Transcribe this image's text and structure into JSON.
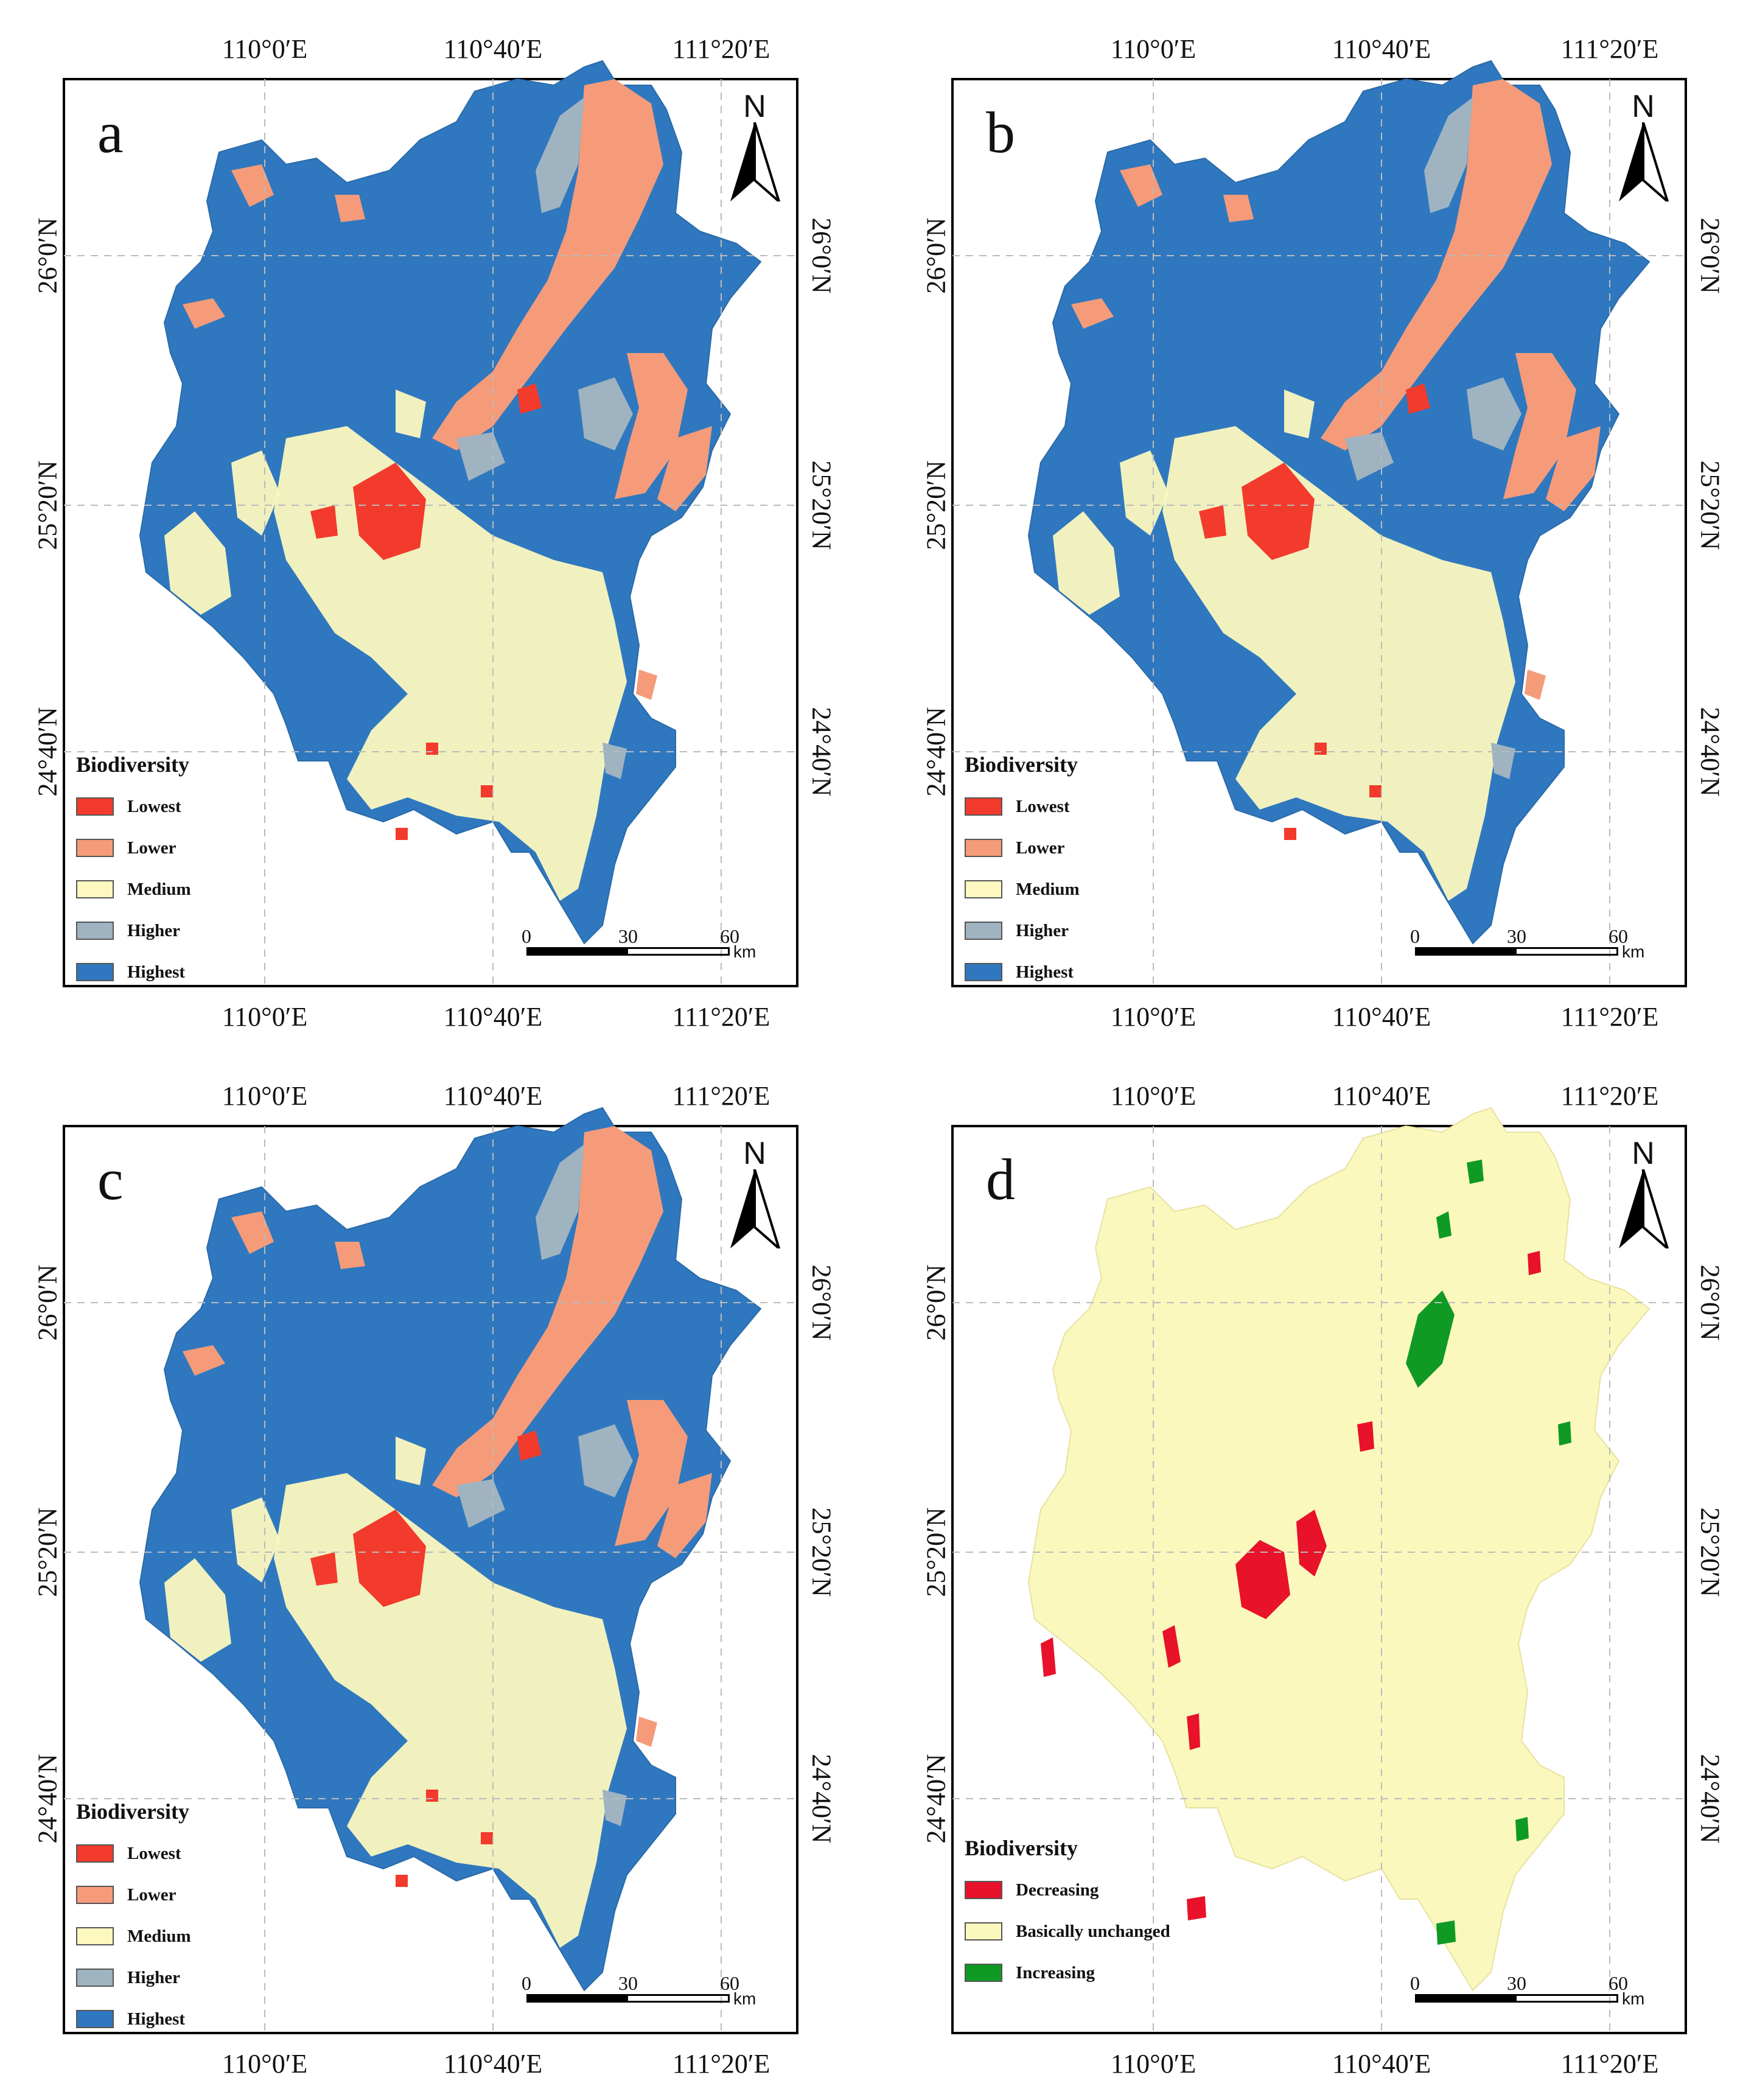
{
  "panels": [
    {
      "id": "a",
      "letter": "a",
      "legend_title": "Biodiversity",
      "legend": [
        {
          "label": "Lowest",
          "color": "#f23b2c"
        },
        {
          "label": "Lower",
          "color": "#f59b7a"
        },
        {
          "label": "Medium",
          "color": "#fcf8bf"
        },
        {
          "label": "Higher",
          "color": "#9fb3c1"
        },
        {
          "label": "Highest",
          "color": "#2f78bf"
        }
      ]
    },
    {
      "id": "b",
      "letter": "b",
      "legend_title": "Biodiversity",
      "legend": [
        {
          "label": "Lowest",
          "color": "#f23b2c"
        },
        {
          "label": "Lower",
          "color": "#f59b7a"
        },
        {
          "label": "Medium",
          "color": "#fcf8bf"
        },
        {
          "label": "Higher",
          "color": "#9fb3c1"
        },
        {
          "label": "Highest",
          "color": "#2f78bf"
        }
      ]
    },
    {
      "id": "c",
      "letter": "c",
      "legend_title": "Biodiversity",
      "legend": [
        {
          "label": "Lowest",
          "color": "#f23b2c"
        },
        {
          "label": "Lower",
          "color": "#f59b7a"
        },
        {
          "label": "Medium",
          "color": "#fcf8bf"
        },
        {
          "label": "Higher",
          "color": "#9fb3c1"
        },
        {
          "label": "Highest",
          "color": "#2f78bf"
        }
      ]
    },
    {
      "id": "d",
      "letter": "d",
      "legend_title": "Biodiversity",
      "legend": [
        {
          "label": "Decreasing",
          "color": "#e8122a"
        },
        {
          "label": "Basically unchanged",
          "color": "#fbf8bd"
        },
        {
          "label": "Increasing",
          "color": "#0f9a24"
        }
      ]
    }
  ],
  "axis": {
    "lon_labels": [
      "110°0′E",
      "110°40′E",
      "111°20′E"
    ],
    "lat_labels": [
      "26°0′N",
      "25°20′N",
      "24°40′N"
    ]
  },
  "north_arrow": {
    "label": "N"
  },
  "scale_bar": {
    "ticks": [
      "0",
      "30",
      "60"
    ],
    "unit": "km"
  }
}
